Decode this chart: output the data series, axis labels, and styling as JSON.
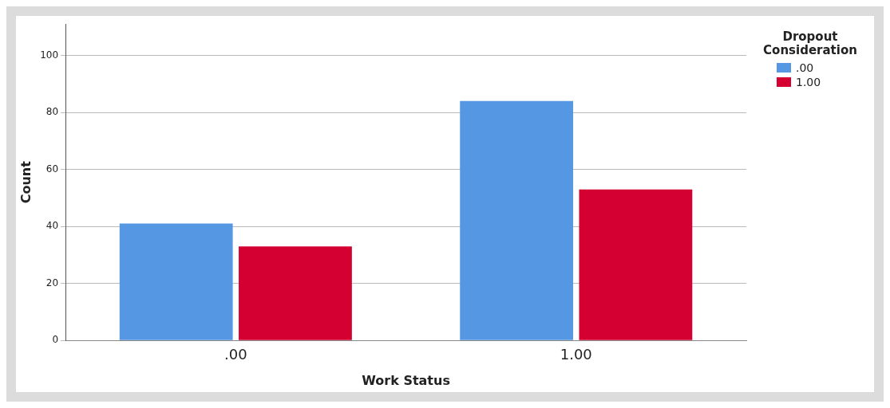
{
  "chart_data": {
    "type": "bar",
    "xlabel": "Work Status",
    "ylabel": "Count",
    "legend_title": "Dropout Consideration",
    "categories": [
      ".00",
      "1.00"
    ],
    "series": [
      {
        "name": ".00",
        "color": "#5697e4",
        "values": [
          41,
          84
        ]
      },
      {
        "name": "1.00",
        "color": "#d50032",
        "values": [
          33,
          53
        ]
      }
    ],
    "ylim": [
      0,
      111
    ],
    "yticks": [
      0,
      20,
      40,
      60,
      80,
      100
    ],
    "grid": "y",
    "legend": "top right"
  }
}
